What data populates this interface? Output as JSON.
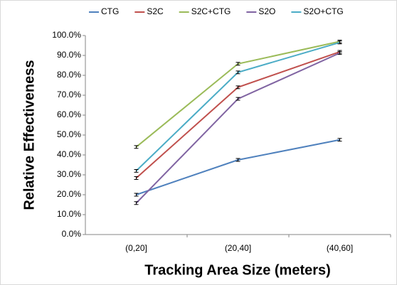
{
  "chart_data": {
    "type": "line",
    "x_label": "Tracking Area Size (meters)",
    "y_label": "Relative Effectiveness",
    "categories": [
      "(0,20]",
      "(20,40]",
      "(40,60]"
    ],
    "series": [
      {
        "name": "CTG",
        "color": "#4f81bd",
        "values": [
          20.0,
          37.5,
          47.6
        ],
        "errors": [
          0.7,
          0.7,
          0.7
        ]
      },
      {
        "name": "S2C",
        "color": "#c0504d",
        "values": [
          28.4,
          74.0,
          91.8
        ],
        "errors": [
          0.7,
          0.7,
          0.7
        ]
      },
      {
        "name": "S2C+CTG",
        "color": "#9bbb59",
        "values": [
          44.0,
          85.8,
          97.0
        ],
        "errors": [
          0.7,
          0.7,
          0.7
        ]
      },
      {
        "name": "S2O",
        "color": "#8064a2",
        "values": [
          15.8,
          68.2,
          91.2
        ],
        "errors": [
          0.7,
          0.7,
          0.7
        ]
      },
      {
        "name": "S2O+CTG",
        "color": "#4bacc6",
        "values": [
          32.0,
          81.5,
          96.5
        ],
        "errors": [
          0.7,
          0.7,
          0.7
        ]
      }
    ],
    "ylim": [
      0,
      100
    ],
    "yticks": [
      {
        "value": 0,
        "label": "0.0%"
      },
      {
        "value": 10,
        "label": "10.0%"
      },
      {
        "value": 20,
        "label": "20.0%"
      },
      {
        "value": 30,
        "label": "30.0%"
      },
      {
        "value": 40,
        "label": "40.0%"
      },
      {
        "value": 50,
        "label": "50.0%"
      },
      {
        "value": 60,
        "label": "60.0%"
      },
      {
        "value": 70,
        "label": "70.0%"
      },
      {
        "value": 80,
        "label": "80.0%"
      },
      {
        "value": 90,
        "label": "90.0%"
      },
      {
        "value": 100,
        "label": "100.0%"
      }
    ],
    "grid": false,
    "legend": "top"
  }
}
